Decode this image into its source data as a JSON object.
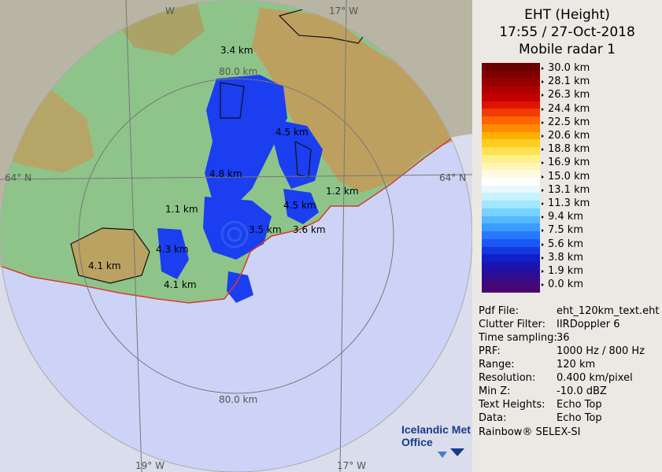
{
  "header": {
    "line1": "EHT (Height)",
    "line2": "17:55 / 27-Oct-2018",
    "line3": "Mobile radar 1"
  },
  "legend": {
    "labels": [
      "30.0 km",
      "28.1 km",
      "26.3 km",
      "24.4 km",
      "22.5 km",
      "20.6 km",
      "18.8 km",
      "16.9 km",
      "15.0 km",
      "13.1 km",
      "11.3 km",
      "9.4 km",
      "7.5 km",
      "5.6 km",
      "3.8 km",
      "1.9 km",
      "0.0 km"
    ],
    "colors": [
      "#6a0000",
      "#7e0000",
      "#950000",
      "#ad0000",
      "#c60000",
      "#df1400",
      "#f03c00",
      "#ff6400",
      "#ff8a00",
      "#ffb000",
      "#ffcc22",
      "#ffe050",
      "#fff08a",
      "#fff6b8",
      "#fffbe0",
      "#ffffff",
      "#e8f9ff",
      "#c8f2ff",
      "#a0e6ff",
      "#78d2ff",
      "#55b8ff",
      "#3a9cff",
      "#2878ff",
      "#1a58f4",
      "#1238e0",
      "#1020c8",
      "#1a14b0",
      "#2a0e98",
      "#3a0a80",
      "#4a0670"
    ]
  },
  "info": [
    {
      "key": "Pdf File:",
      "value": "eht_120km_text.eht"
    },
    {
      "key": "Clutter Filter:",
      "value": "IIRDoppler 6"
    },
    {
      "key": "Time sampling:",
      "value": "36"
    },
    {
      "key": "PRF:",
      "value": "1000 Hz / 800 Hz"
    },
    {
      "key": "Range:",
      "value": "120 km"
    },
    {
      "key": "Resolution:",
      "value": "0.400 km/pixel"
    },
    {
      "key": "Min Z:",
      "value": "-10.0 dBZ"
    },
    {
      "key": "Text Heights:",
      "value": "Echo Top"
    },
    {
      "key": "Data:",
      "value": "Echo Top"
    }
  ],
  "footer": "Rainbow® SELEX-SI",
  "map": {
    "grid_labels": {
      "lon_w": "W",
      "lon_17_top": "17° W",
      "lat_left": "64° N",
      "lat_right": "64° N",
      "lon_19_bottom": "19° W",
      "lon_17_bottom": "17° W",
      "range_inner": "80.0 km",
      "range_bottom": "80.0 km"
    },
    "height_labels": [
      "3.4 km",
      "4.5 km",
      "4.8 km",
      "1.2 km",
      "1.1 km",
      "4.5 km",
      "3.5 km",
      "3.6 km",
      "4.3 km",
      "4.1 km",
      "4.1 km"
    ],
    "logo_line1": "Icelandic Met",
    "logo_line2": "Office"
  }
}
